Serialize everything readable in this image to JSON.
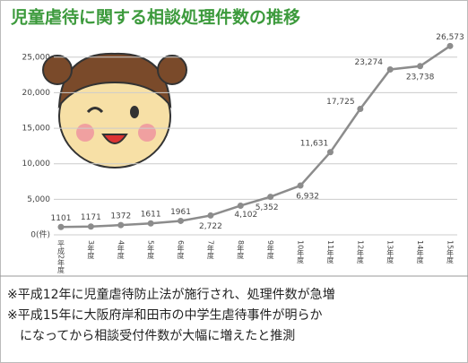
{
  "chart_data": {
    "type": "line",
    "title": "児童虐待に関する相談処理件数の推移",
    "categories": [
      "平成2年度",
      "3年度",
      "4年度",
      "5年度",
      "6年度",
      "7年度",
      "8年度",
      "9年度",
      "10年度",
      "11年度",
      "12年度",
      "13年度",
      "14年度",
      "15年度"
    ],
    "series": [
      {
        "name": "相談処理件数",
        "color": "#8c8c8c",
        "values": [
          1101,
          1171,
          1372,
          1611,
          1961,
          2722,
          4102,
          5352,
          6932,
          11631,
          17725,
          23274,
          23738,
          26573
        ],
        "value_labels": [
          "1101",
          "1171",
          "1372",
          "1611",
          "1961",
          "2,722",
          "4,102",
          "5,352",
          "6,932",
          "11,631",
          "17,725",
          "23,274",
          "23,738",
          "26,573"
        ]
      }
    ],
    "ylim": [
      0,
      28000
    ],
    "yticks": [
      {
        "value": 0,
        "label": "0(件)"
      },
      {
        "value": 5000,
        "label": "5,000"
      },
      {
        "value": 10000,
        "label": "10,000"
      },
      {
        "value": 15000,
        "label": "15,000"
      },
      {
        "value": 20000,
        "label": "20,000"
      },
      {
        "value": 25000,
        "label": "25,000"
      }
    ],
    "grid": true
  },
  "notes": [
    "※平成12年に児童虐待防止法が施行され、処理件数が急増",
    "※平成15年に大阪府岸和田市の中学生虐待事件が明らか",
    "になってから相談受付件数が大幅に増えたと推測"
  ]
}
